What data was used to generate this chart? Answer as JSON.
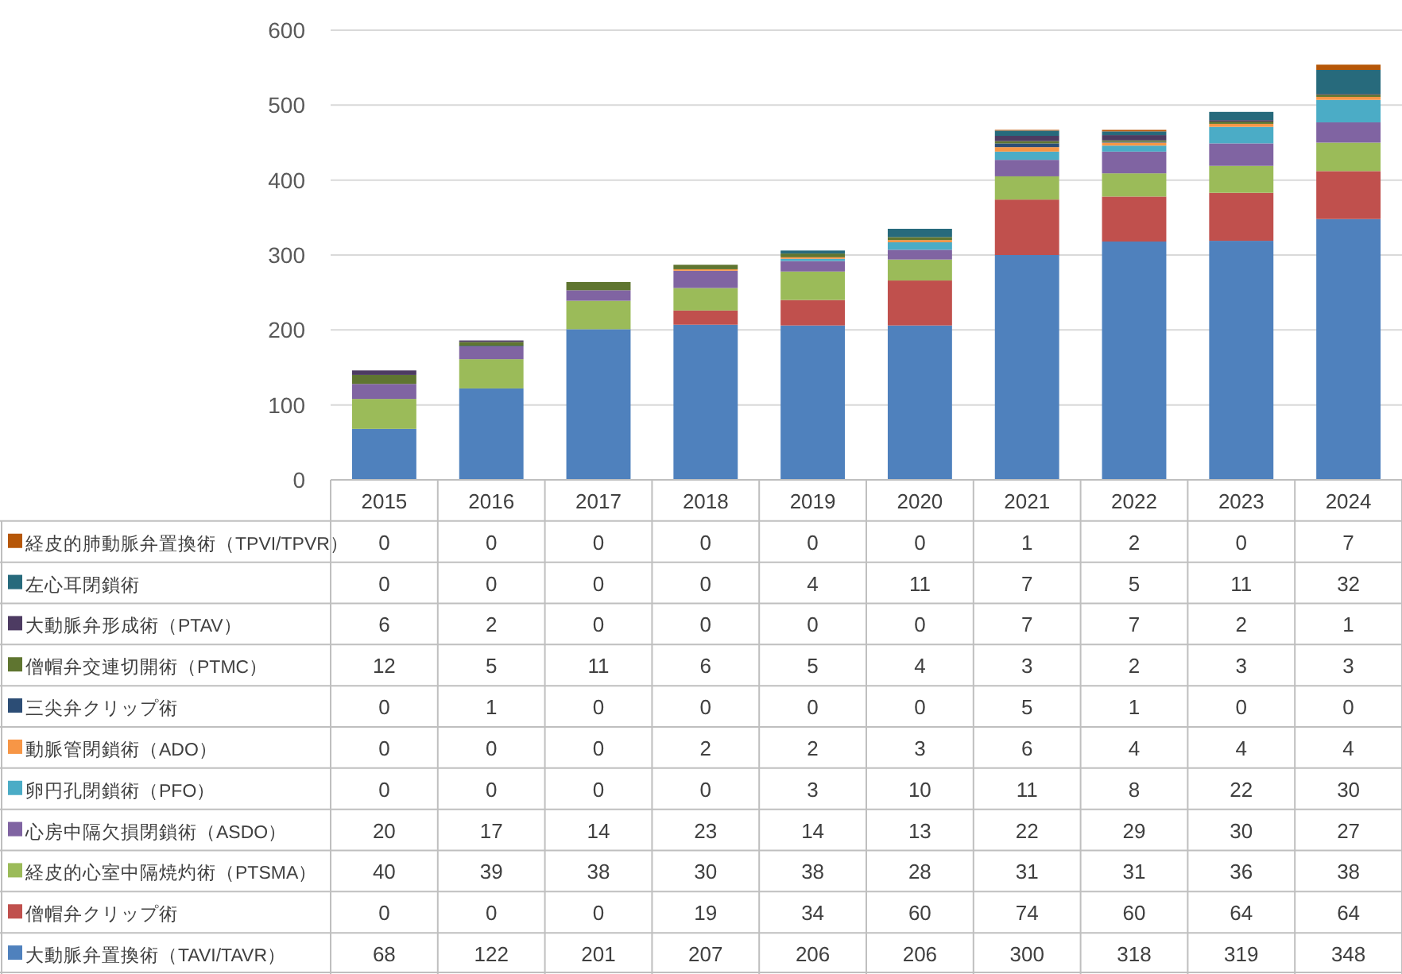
{
  "chart_data": {
    "type": "bar",
    "stacked": true,
    "categories": [
      "2015",
      "2016",
      "2017",
      "2018",
      "2019",
      "2020",
      "2021",
      "2022",
      "2023",
      "2024"
    ],
    "ylim": [
      0,
      600
    ],
    "yticks": [
      0,
      100,
      200,
      300,
      400,
      500,
      600
    ],
    "grid": "y",
    "data_labels": true,
    "legend": "left",
    "series": [
      {
        "name": "大動脈弁置換術（TAVI/TAVR）",
        "color": "#4f81bd",
        "values": [
          68,
          122,
          201,
          207,
          206,
          206,
          300,
          318,
          319,
          348
        ]
      },
      {
        "name": "僧帽弁クリップ術",
        "color": "#c0504d",
        "values": [
          0,
          0,
          0,
          19,
          34,
          60,
          74,
          60,
          64,
          64
        ]
      },
      {
        "name": "経皮的心室中隔焼灼術（PTSMA）",
        "color": "#9bbb59",
        "values": [
          40,
          39,
          38,
          30,
          38,
          28,
          31,
          31,
          36,
          38
        ]
      },
      {
        "name": "心房中隔欠損閉鎖術（ASDO）",
        "color": "#8064a2",
        "values": [
          20,
          17,
          14,
          23,
          14,
          13,
          22,
          29,
          30,
          27
        ]
      },
      {
        "name": "卵円孔閉鎖術（PFO）",
        "color": "#4bacc6",
        "values": [
          0,
          0,
          0,
          0,
          3,
          10,
          11,
          8,
          22,
          30
        ]
      },
      {
        "name": "動脈管閉鎖術（ADO）",
        "color": "#f79646",
        "values": [
          0,
          0,
          0,
          2,
          2,
          3,
          6,
          4,
          4,
          4
        ]
      },
      {
        "name": "三尖弁クリップ術",
        "color": "#2c4d75",
        "values": [
          0,
          1,
          0,
          0,
          0,
          0,
          5,
          1,
          0,
          0
        ]
      },
      {
        "name": "僧帽弁交連切開術（PTMC）",
        "color": "#5f7530",
        "values": [
          12,
          5,
          11,
          6,
          5,
          4,
          3,
          2,
          3,
          3
        ]
      },
      {
        "name": "大動脈弁形成術（PTAV）",
        "color": "#4d3b62",
        "values": [
          6,
          2,
          0,
          0,
          0,
          0,
          7,
          7,
          2,
          1
        ]
      },
      {
        "name": "左心耳閉鎖術",
        "color": "#276a7c",
        "values": [
          0,
          0,
          0,
          0,
          4,
          11,
          7,
          5,
          11,
          32
        ]
      },
      {
        "name": "経皮的肺動脈弁置換術（TPVI/TPVR）",
        "color": "#b65708",
        "values": [
          0,
          0,
          0,
          0,
          0,
          0,
          1,
          2,
          0,
          7
        ]
      }
    ]
  }
}
